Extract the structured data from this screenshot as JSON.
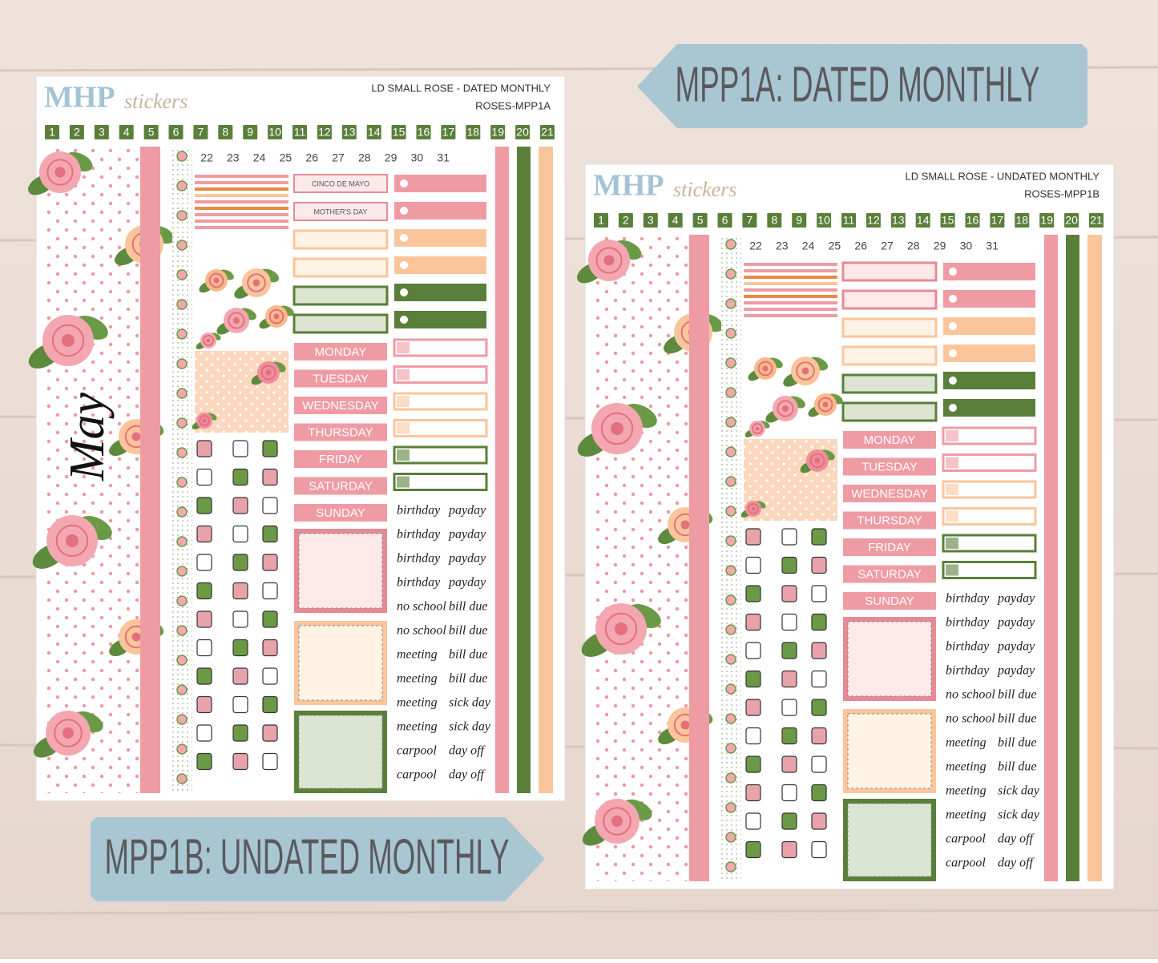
{
  "banners": {
    "dated": "MPP1A: DATED MONTHLY",
    "undated": "MPP1B: UNDATED MONTHLY"
  },
  "sheets": [
    {
      "logo": {
        "brand": "MHP",
        "suffix": "stickers"
      },
      "title": "LD SMALL ROSE - DATED MONTHLY",
      "code": "ROSES-MPP1A",
      "dates": [
        1,
        2,
        3,
        4,
        5,
        6,
        7,
        8,
        9,
        10,
        11,
        12,
        13,
        14,
        15,
        16,
        17,
        18,
        19,
        20,
        21,
        22,
        23,
        24,
        25,
        26,
        27,
        28,
        29,
        30,
        31
      ],
      "month": "May",
      "holidays": [
        "CINCO DE MAYO",
        "MOTHER'S DAY"
      ],
      "weekdays": [
        "MONDAY",
        "TUESDAY",
        "WEDNESDAY",
        "THURSDAY",
        "FRIDAY",
        "SATURDAY",
        "SUNDAY"
      ],
      "script_left": [
        "birthday",
        "birthday",
        "birthday",
        "birthday",
        "no school",
        "no school",
        "meeting",
        "meeting",
        "meeting",
        "meeting",
        "carpool",
        "carpool"
      ],
      "script_right": [
        "payday",
        "payday",
        "payday",
        "payday",
        "bill due",
        "bill due",
        "bill due",
        "bill due",
        "sick day",
        "sick day",
        "day off",
        "day off"
      ]
    },
    {
      "logo": {
        "brand": "MHP",
        "suffix": "stickers"
      },
      "title": "LD SMALL ROSE - UNDATED MONTHLY",
      "code": "ROSES-MPP1B",
      "dates": [
        1,
        2,
        3,
        4,
        5,
        6,
        7,
        8,
        9,
        10,
        11,
        12,
        13,
        14,
        15,
        16,
        17,
        18,
        19,
        20,
        21,
        22,
        23,
        24,
        25,
        26,
        27,
        28,
        29,
        30,
        31
      ],
      "weekdays": [
        "MONDAY",
        "TUESDAY",
        "WEDNESDAY",
        "THURSDAY",
        "FRIDAY",
        "SATURDAY",
        "SUNDAY"
      ],
      "script_left": [
        "birthday",
        "birthday",
        "birthday",
        "birthday",
        "no school",
        "no school",
        "meeting",
        "meeting",
        "meeting",
        "meeting",
        "carpool",
        "carpool"
      ],
      "script_right": [
        "payday",
        "payday",
        "payday",
        "payday",
        "bill due",
        "bill due",
        "bill due",
        "bill due",
        "sick day",
        "sick day",
        "day off",
        "day off"
      ]
    }
  ]
}
